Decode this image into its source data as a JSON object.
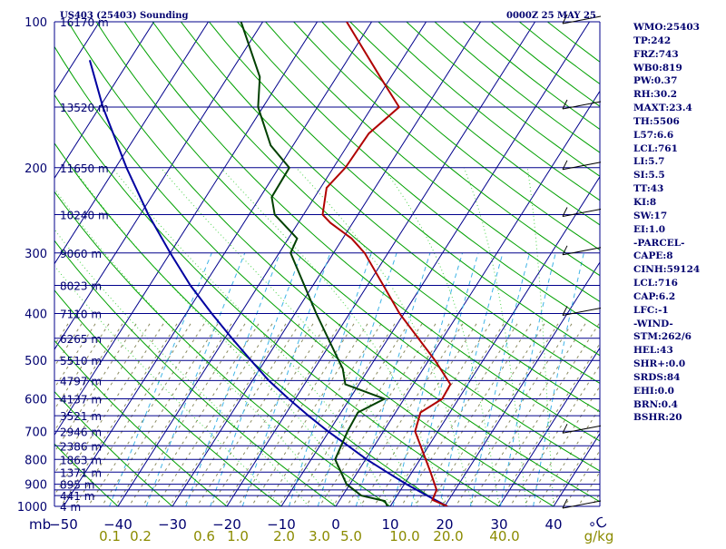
{
  "header": {
    "station": "US403 (25403) Sounding",
    "time": "0000Z 25 MAY 25"
  },
  "chart_data": {
    "type": "skew-t log-p sounding",
    "pressure_axis_label": "mb",
    "pressure_ticks": [
      100,
      200,
      300,
      400,
      500,
      600,
      700,
      800,
      900,
      1000
    ],
    "pressure_ticks_labels": [
      "100",
      "200",
      "300",
      "400",
      "500",
      "600",
      "700",
      "800",
      "900",
      "1000"
    ],
    "isobars": [
      100,
      150,
      200,
      250,
      300,
      350,
      400,
      450,
      500,
      550,
      600,
      650,
      700,
      750,
      800,
      850,
      900,
      925,
      950,
      1000
    ],
    "height_labels": [
      {
        "p": 100,
        "text": "16170 m"
      },
      {
        "p": 150,
        "text": "13520 m"
      },
      {
        "p": 200,
        "text": "11650 m"
      },
      {
        "p": 250,
        "text": "10240 m"
      },
      {
        "p": 300,
        "text": "9060 m"
      },
      {
        "p": 350,
        "text": "8023 m"
      },
      {
        "p": 400,
        "text": "7110 m"
      },
      {
        "p": 450,
        "text": "6265 m"
      },
      {
        "p": 500,
        "text": "5510 m"
      },
      {
        "p": 550,
        "text": "4797 m"
      },
      {
        "p": 600,
        "text": "4137 m"
      },
      {
        "p": 650,
        "text": "3521 m"
      },
      {
        "p": 700,
        "text": "2946 m"
      },
      {
        "p": 750,
        "text": "2386 m"
      },
      {
        "p": 800,
        "text": "1863 m"
      },
      {
        "p": 850,
        "text": "1371 m"
      },
      {
        "p": 900,
        "text": "895 m"
      },
      {
        "p": 950,
        "text": "441 m"
      },
      {
        "p": 1000,
        "text": "4 m"
      }
    ],
    "temperature_axis_label": "°C",
    "temperature_ticks": [
      -50,
      -40,
      -30,
      -20,
      -10,
      0,
      10,
      20,
      30,
      40
    ],
    "temperature_ticks_labels": [
      "−50",
      "−40",
      "−30",
      "−20",
      "−10",
      "0",
      "10",
      "20",
      "30",
      "40"
    ],
    "mixing_ratio_label": "g/kg",
    "mixing_ratio_ticks": [
      "0.1",
      "0.2",
      "0.6",
      "1.0",
      "2.0",
      "3.0",
      "5.0",
      "10.0",
      "20.0",
      "40.0"
    ],
    "temperature_profile": [
      {
        "p": 1000,
        "t": 20.5
      },
      {
        "p": 970,
        "t": 17.0
      },
      {
        "p": 925,
        "t": 16.6
      },
      {
        "p": 850,
        "t": 13.4
      },
      {
        "p": 700,
        "t": 5.8
      },
      {
        "p": 640,
        "t": 4.6
      },
      {
        "p": 600,
        "t": 7.0
      },
      {
        "p": 560,
        "t": 6.8
      },
      {
        "p": 500,
        "t": 1.2
      },
      {
        "p": 400,
        "t": -10.8
      },
      {
        "p": 300,
        "t": -24.3
      },
      {
        "p": 280,
        "t": -28.4
      },
      {
        "p": 260,
        "t": -34.1
      },
      {
        "p": 250,
        "t": -36.5
      },
      {
        "p": 220,
        "t": -38.9
      },
      {
        "p": 200,
        "t": -37.8
      },
      {
        "p": 170,
        "t": -37.5
      },
      {
        "p": 150,
        "t": -35.0
      },
      {
        "p": 130,
        "t": -42.0
      },
      {
        "p": 100,
        "t": -54.6
      }
    ],
    "dewpoint_profile": [
      {
        "p": 1000,
        "t": 9.5
      },
      {
        "p": 975,
        "t": 8.4
      },
      {
        "p": 950,
        "t": 3.4
      },
      {
        "p": 900,
        "t": -0.6
      },
      {
        "p": 800,
        "t": -5.6
      },
      {
        "p": 700,
        "t": -6.6
      },
      {
        "p": 640,
        "t": -6.9
      },
      {
        "p": 600,
        "t": -3.6
      },
      {
        "p": 560,
        "t": -12.5
      },
      {
        "p": 520,
        "t": -14.8
      },
      {
        "p": 500,
        "t": -16.5
      },
      {
        "p": 400,
        "t": -26.1
      },
      {
        "p": 300,
        "t": -37.9
      },
      {
        "p": 280,
        "t": -38.4
      },
      {
        "p": 250,
        "t": -45.3
      },
      {
        "p": 230,
        "t": -47.9
      },
      {
        "p": 200,
        "t": -48.1
      },
      {
        "p": 180,
        "t": -54.1
      },
      {
        "p": 160,
        "t": -58.5
      },
      {
        "p": 150,
        "t": -60.9
      },
      {
        "p": 130,
        "t": -64.1
      },
      {
        "p": 100,
        "t": -74.0
      }
    ],
    "parcel_profile": [
      {
        "p": 1000,
        "t": 20.5
      },
      {
        "p": 950,
        "t": 15.5
      },
      {
        "p": 900,
        "t": 10.4
      },
      {
        "p": 850,
        "t": 5.4
      },
      {
        "p": 800,
        "t": 0.2
      },
      {
        "p": 750,
        "t": -4.8
      },
      {
        "p": 700,
        "t": -10.2
      },
      {
        "p": 650,
        "t": -15.6
      },
      {
        "p": 600,
        "t": -21.2
      },
      {
        "p": 550,
        "t": -27.0
      },
      {
        "p": 500,
        "t": -32.6
      },
      {
        "p": 450,
        "t": -38.7
      },
      {
        "p": 400,
        "t": -45.3
      },
      {
        "p": 350,
        "t": -52.5
      },
      {
        "p": 300,
        "t": -60.0
      },
      {
        "p": 250,
        "t": -68.5
      },
      {
        "p": 200,
        "t": -78.0
      },
      {
        "p": 150,
        "t": -89.4
      },
      {
        "p": 120,
        "t": -97.3
      }
    ],
    "wind_barbs_pressures": [
      100,
      150,
      200,
      250,
      300,
      400,
      700,
      1000
    ],
    "colors": {
      "isobar": "#00008b",
      "isotherm": "#00008b",
      "dry_adiabat": "#00a000",
      "moist_adiabat": "#00c000",
      "mixing_ratio": "#3eb4e6",
      "temperature": "#b00000",
      "dewpoint": "#004000",
      "parcel": "#0000a0",
      "hatch": "#8b8b60"
    }
  },
  "indices": [
    "WMO:25403",
    "TP:242",
    "FRZ:743",
    "WB0:819",
    "PW:0.37",
    "RH:30.2",
    "MAXT:23.4",
    "TH:5506",
    "L57:6.6",
    "LCL:761",
    "LI:5.7",
    "SI:5.5",
    "TT:43",
    "KI:8",
    "SW:17",
    "EI:1.0",
    "-PARCEL-",
    "CAPE:8",
    "CINH:59124",
    "LCL:716",
    "CAP:6.2",
    "LFC:-1",
    "-WIND-",
    "STM:262/6",
    "HEL:43",
    "SHR+:0.0",
    "SRDS:84",
    "EHI:0.0",
    "BRN:0.4",
    "BSHR:20"
  ]
}
